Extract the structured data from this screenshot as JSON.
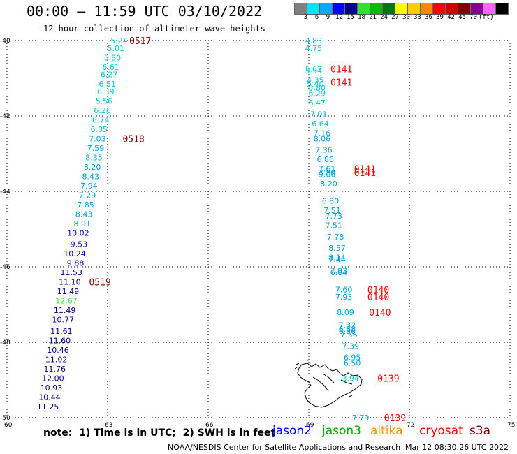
{
  "header": {
    "title": "00:00 – 11:59 UTC 03/10/2022",
    "subtitle": "12 hour collection of altimeter wave heights"
  },
  "color_scale": {
    "labels": [
      "3",
      "6",
      "9",
      "12",
      "15",
      "18",
      "21",
      "24",
      "27",
      "30",
      "33",
      "36",
      "39",
      "42",
      "45",
      "70",
      "(ft)"
    ],
    "colors": [
      "#808080",
      "#00e5ff",
      "#00aaff",
      "#0000ff",
      "#00008b",
      "#33dd33",
      "#00bb00",
      "#007700",
      "#ffff00",
      "#ffcc00",
      "#ff8800",
      "#ff0000",
      "#cc0000",
      "#800000",
      "#8b008b",
      "#ff66ff",
      "#000000"
    ]
  },
  "chart_data": {
    "type": "map",
    "axes": {
      "lon_ticks": [
        "60",
        "63",
        "66",
        "69",
        "72",
        "75"
      ],
      "lat_ticks": [
        "-40",
        "-42",
        "-44",
        "-46",
        "-48",
        "-50"
      ],
      "lon_range": [
        60,
        75
      ],
      "lat_range": [
        -50,
        -40
      ],
      "grid": true
    },
    "tracks": [
      {
        "satellite": "s3a",
        "points": [
          {
            "lon": 63.6,
            "lat": -40.0,
            "v": "5.24",
            "c": "#00c8d8"
          },
          {
            "lon": 63.5,
            "lat": -40.2,
            "v": "5.01",
            "c": "#00c8d8"
          },
          {
            "lon": 63.4,
            "lat": -40.45,
            "v": "5.80",
            "c": "#00c8d8"
          },
          {
            "lon": 63.35,
            "lat": -40.7,
            "v": "6.61",
            "c": "#00c8d8"
          },
          {
            "lon": 63.3,
            "lat": -40.9,
            "v": "6.27",
            "c": "#00c8d8"
          },
          {
            "lon": 63.25,
            "lat": -41.15,
            "v": "6.51",
            "c": "#00c8d8"
          },
          {
            "lon": 63.2,
            "lat": -41.35,
            "v": "6.39",
            "c": "#00c8d8"
          },
          {
            "lon": 63.15,
            "lat": -41.6,
            "v": "5.56",
            "c": "#00c8d8"
          },
          {
            "lon": 63.1,
            "lat": -41.85,
            "v": "6.26",
            "c": "#00c8d8"
          },
          {
            "lon": 63.05,
            "lat": -42.1,
            "v": "6.74",
            "c": "#00c8d8"
          },
          {
            "lon": 63.0,
            "lat": -42.35,
            "v": "6.85",
            "c": "#00c8d8"
          },
          {
            "lon": 62.95,
            "lat": -42.6,
            "v": "7.03",
            "c": "#00a0e0"
          },
          {
            "lon": 62.9,
            "lat": -42.85,
            "v": "7.59",
            "c": "#00a0e0"
          },
          {
            "lon": 62.85,
            "lat": -43.1,
            "v": "8.35",
            "c": "#00a0e0"
          },
          {
            "lon": 62.8,
            "lat": -43.35,
            "v": "8.20",
            "c": "#00a0e0"
          },
          {
            "lon": 62.75,
            "lat": -43.6,
            "v": "8.43",
            "c": "#00a0e0"
          },
          {
            "lon": 62.7,
            "lat": -43.85,
            "v": "7.94",
            "c": "#00a0e0"
          },
          {
            "lon": 62.65,
            "lat": -44.1,
            "v": "7.29",
            "c": "#00a0e0"
          },
          {
            "lon": 62.6,
            "lat": -44.35,
            "v": "7.85",
            "c": "#00a0e0"
          },
          {
            "lon": 62.55,
            "lat": -44.6,
            "v": "8.43",
            "c": "#00a0e0"
          },
          {
            "lon": 62.5,
            "lat": -44.85,
            "v": "8.91",
            "c": "#00a0e0"
          },
          {
            "lon": 62.45,
            "lat": -45.1,
            "v": "10.02",
            "c": "#0000cc"
          },
          {
            "lon": 62.4,
            "lat": -45.4,
            "v": "9.53",
            "c": "#0000cc"
          },
          {
            "lon": 62.35,
            "lat": -45.65,
            "v": "10.24",
            "c": "#0000cc"
          },
          {
            "lon": 62.3,
            "lat": -45.9,
            "v": "9.88",
            "c": "#0000cc"
          },
          {
            "lon": 62.25,
            "lat": -46.15,
            "v": "11.53",
            "c": "#00008b"
          },
          {
            "lon": 62.2,
            "lat": -46.4,
            "v": "11.10",
            "c": "#00008b"
          },
          {
            "lon": 62.15,
            "lat": -46.65,
            "v": "11.49",
            "c": "#00008b"
          },
          {
            "lon": 62.1,
            "lat": -46.9,
            "v": "12.67",
            "c": "#44dd44"
          },
          {
            "lon": 62.05,
            "lat": -47.15,
            "v": "11.49",
            "c": "#00008b"
          },
          {
            "lon": 62.0,
            "lat": -47.4,
            "v": "10.77",
            "c": "#00008b"
          },
          {
            "lon": 61.95,
            "lat": -47.7,
            "v": "11.61",
            "c": "#00008b"
          },
          {
            "lon": 61.9,
            "lat": -47.95,
            "v": "11.60",
            "c": "#00008b"
          },
          {
            "lon": 61.85,
            "lat": -48.2,
            "v": "10.46",
            "c": "#00008b"
          },
          {
            "lon": 61.8,
            "lat": -48.45,
            "v": "11.02",
            "c": "#00008b"
          },
          {
            "lon": 61.75,
            "lat": -48.7,
            "v": "11.76",
            "c": "#00008b"
          },
          {
            "lon": 61.7,
            "lat": -48.95,
            "v": "12.00",
            "c": "#00008b"
          },
          {
            "lon": 61.65,
            "lat": -49.2,
            "v": "10.93",
            "c": "#00008b"
          },
          {
            "lon": 61.6,
            "lat": -49.45,
            "v": "10.44",
            "c": "#00008b"
          },
          {
            "lon": 61.55,
            "lat": -49.7,
            "v": "11.25",
            "c": "#00008b"
          }
        ],
        "time_labels": [
          {
            "lon": 64.3,
            "lat": -40.0,
            "t": "0517"
          },
          {
            "lon": 64.1,
            "lat": -42.6,
            "t": "0518"
          },
          {
            "lon": 63.1,
            "lat": -46.4,
            "t": "0519"
          }
        ],
        "time_color": "#800000"
      },
      {
        "satellite": "cryosat",
        "points": [
          {
            "lon": 69.4,
            "lat": -40.0,
            "v": "4.83",
            "c": "#00c8d8"
          },
          {
            "lon": 69.4,
            "lat": -40.2,
            "v": "4.75",
            "c": "#00c8d8"
          },
          {
            "lon": 69.4,
            "lat": -40.75,
            "v": "5.62",
            "c": "#00c8d8"
          },
          {
            "lon": 69.4,
            "lat": -40.8,
            "v": "5.54",
            "c": "#00c8d8"
          },
          {
            "lon": 69.45,
            "lat": -41.05,
            "v": "4.35",
            "c": "#00c8d8"
          },
          {
            "lon": 69.45,
            "lat": -41.15,
            "v": "5.40",
            "c": "#00c8d8"
          },
          {
            "lon": 69.5,
            "lat": -41.25,
            "v": "5.80",
            "c": "#00c8d8"
          },
          {
            "lon": 69.5,
            "lat": -41.4,
            "v": "6.29",
            "c": "#00c8d8"
          },
          {
            "lon": 69.5,
            "lat": -41.65,
            "v": "6.47",
            "c": "#00c8d8"
          },
          {
            "lon": 69.55,
            "lat": -41.95,
            "v": "7.01",
            "c": "#00a0e0"
          },
          {
            "lon": 69.6,
            "lat": -42.2,
            "v": "6.64",
            "c": "#00c8d8"
          },
          {
            "lon": 69.65,
            "lat": -42.45,
            "v": "7.16",
            "c": "#00a0e0"
          },
          {
            "lon": 69.65,
            "lat": -42.6,
            "v": "8.06",
            "c": "#00a0e0"
          },
          {
            "lon": 69.7,
            "lat": -42.9,
            "v": "7.36",
            "c": "#00a0e0"
          },
          {
            "lon": 69.75,
            "lat": -43.15,
            "v": "6.86",
            "c": "#00a0e0"
          },
          {
            "lon": 69.8,
            "lat": -43.4,
            "v": "7.61",
            "c": "#00a0e0"
          },
          {
            "lon": 69.8,
            "lat": -43.5,
            "v": "7.80",
            "c": "#00a0e0"
          },
          {
            "lon": 69.8,
            "lat": -43.55,
            "v": "9.06",
            "c": "#00a0e0"
          },
          {
            "lon": 69.85,
            "lat": -43.8,
            "v": "8.20",
            "c": "#00a0e0"
          },
          {
            "lon": 69.9,
            "lat": -44.25,
            "v": "6.80",
            "c": "#00a0e0"
          },
          {
            "lon": 69.95,
            "lat": -44.5,
            "v": "7.51",
            "c": "#00a0e0"
          },
          {
            "lon": 70.0,
            "lat": -44.65,
            "v": "7.73",
            "c": "#00a0e0"
          },
          {
            "lon": 70.0,
            "lat": -44.9,
            "v": "7.51",
            "c": "#00a0e0"
          },
          {
            "lon": 70.05,
            "lat": -45.2,
            "v": "7.78",
            "c": "#00a0e0"
          },
          {
            "lon": 70.1,
            "lat": -45.5,
            "v": "8.57",
            "c": "#00a0e0"
          },
          {
            "lon": 70.1,
            "lat": -45.75,
            "v": "8.14",
            "c": "#00a0e0"
          },
          {
            "lon": 70.1,
            "lat": -45.8,
            "v": "7.44",
            "c": "#00a0e0"
          },
          {
            "lon": 70.15,
            "lat": -46.1,
            "v": "7.83",
            "c": "#00a0e0"
          },
          {
            "lon": 70.15,
            "lat": -46.15,
            "v": "6.84",
            "c": "#00a0e0"
          },
          {
            "lon": 70.3,
            "lat": -46.6,
            "v": "7.60",
            "c": "#00a0e0"
          },
          {
            "lon": 70.3,
            "lat": -46.8,
            "v": "7.93",
            "c": "#00a0e0"
          },
          {
            "lon": 70.35,
            "lat": -47.2,
            "v": "8.09",
            "c": "#00a0e0"
          },
          {
            "lon": 70.4,
            "lat": -47.55,
            "v": "7.32",
            "c": "#00a0e0"
          },
          {
            "lon": 70.4,
            "lat": -47.65,
            "v": "6.68",
            "c": "#00a0e0"
          },
          {
            "lon": 70.4,
            "lat": -47.7,
            "v": "6.86",
            "c": "#00a0e0"
          },
          {
            "lon": 70.45,
            "lat": -47.8,
            "v": "7.56",
            "c": "#00a0e0"
          },
          {
            "lon": 70.5,
            "lat": -48.1,
            "v": "7.39",
            "c": "#00a0e0"
          },
          {
            "lon": 70.55,
            "lat": -48.4,
            "v": "6.95",
            "c": "#00a0e0"
          },
          {
            "lon": 70.55,
            "lat": -48.55,
            "v": "6.50",
            "c": "#00a0e0"
          },
          {
            "lon": 70.5,
            "lat": -48.95,
            "v": "3.94",
            "c": "#00c8d8"
          },
          {
            "lon": 70.8,
            "lat": -50.0,
            "v": "7.79",
            "c": "#00a0e0"
          }
        ],
        "time_labels": [
          {
            "lon": 70.3,
            "lat": -40.75,
            "t": "0141"
          },
          {
            "lon": 70.3,
            "lat": -41.1,
            "t": "0141"
          },
          {
            "lon": 71.0,
            "lat": -43.4,
            "t": "0141"
          },
          {
            "lon": 71.0,
            "lat": -43.5,
            "t": "0141"
          },
          {
            "lon": 71.4,
            "lat": -46.6,
            "t": "0140"
          },
          {
            "lon": 71.4,
            "lat": -46.8,
            "t": "0140"
          },
          {
            "lon": 71.45,
            "lat": -47.2,
            "t": "0140"
          },
          {
            "lon": 71.7,
            "lat": -48.95,
            "t": "0139"
          },
          {
            "lon": 71.9,
            "lat": -50.0,
            "t": "0139"
          }
        ],
        "time_color": "#ff0000"
      }
    ]
  },
  "footer": {
    "note": "note:  1) Time is in UTC;  2) SWH is in feet",
    "satellites": [
      {
        "name": "jason2",
        "color": "#0000ff"
      },
      {
        "name": "jason3",
        "color": "#00aa00"
      },
      {
        "name": "altika",
        "color": "#ff9900"
      },
      {
        "name": "cryosat",
        "color": "#ff0000"
      },
      {
        "name": "s3a",
        "color": "#800000"
      }
    ],
    "credit": "NOAA/NESDIS Center for Satellite Applications and Research",
    "generated": "Mar 12 08:30:26 UTC 2022"
  }
}
